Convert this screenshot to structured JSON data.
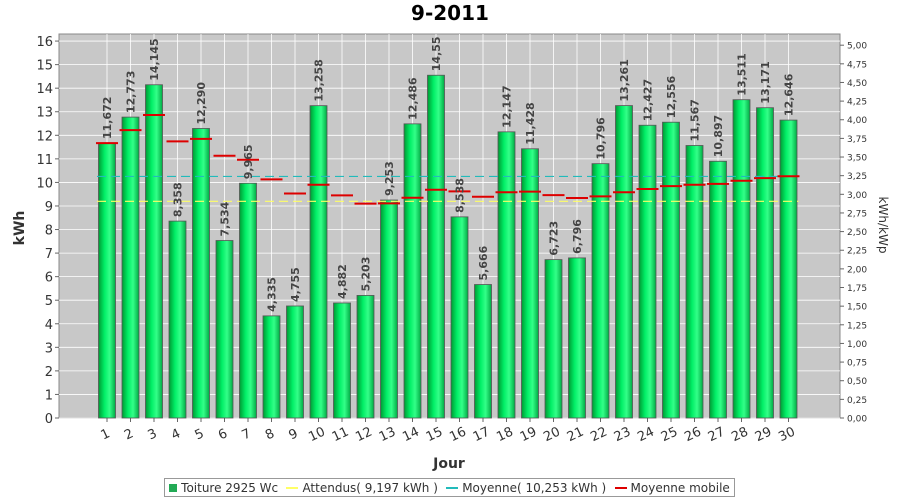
{
  "chart_data": {
    "type": "bar",
    "title": "9-2011",
    "xlabel": "Jour",
    "ylabel": "kWh",
    "ylabel_right": "kWh/kWp",
    "ylim": [
      0,
      16.3
    ],
    "ylim_right": [
      0,
      5.15
    ],
    "yticks_left": [
      "0",
      "1",
      "2",
      "3",
      "4",
      "5",
      "6",
      "7",
      "8",
      "9",
      "10",
      "11",
      "12",
      "13",
      "14",
      "15",
      "16"
    ],
    "yticks_right": [
      "0,00",
      "0,25",
      "0,50",
      "0,75",
      "1,00",
      "1,25",
      "1,50",
      "1,75",
      "2,00",
      "2,25",
      "2,50",
      "2,75",
      "3,00",
      "3,25",
      "3,50",
      "3,75",
      "4,00",
      "4,25",
      "4,50",
      "4,75",
      "5,00"
    ],
    "categories": [
      "1",
      "2",
      "3",
      "4",
      "5",
      "6",
      "7",
      "8",
      "9",
      "10",
      "11",
      "12",
      "13",
      "14",
      "15",
      "16",
      "17",
      "18",
      "19",
      "20",
      "21",
      "22",
      "23",
      "24",
      "25",
      "26",
      "27",
      "28",
      "29",
      "30"
    ],
    "series": [
      {
        "name": "Toiture 2925 Wc",
        "values": [
          11.672,
          12.773,
          14.145,
          8.358,
          12.29,
          7.534,
          9.965,
          4.335,
          4.755,
          13.258,
          4.882,
          5.203,
          9.253,
          12.486,
          14.55,
          8.538,
          5.666,
          12.147,
          11.428,
          6.723,
          6.796,
          10.796,
          13.261,
          12.427,
          12.556,
          11.567,
          10.897,
          13.511,
          13.171,
          12.646
        ],
        "labels": [
          "11,672",
          "12,773",
          "14,145",
          "8,358",
          "12,290",
          "7,534",
          "9,965",
          "4,335",
          "4,755",
          "13,258",
          "4,882",
          "5,203",
          "9,253",
          "12,486",
          "14,55",
          "8,538",
          "5,666",
          "12,147",
          "11,428",
          "6,723",
          "6,796",
          "10,796",
          "13,261",
          "12,427",
          "12,556",
          "11,567",
          "10,897",
          "13,511",
          "13,171",
          "12,646"
        ],
        "color": "#00cc55"
      },
      {
        "name": "Moyenne mobile",
        "values": [
          11.67,
          12.22,
          12.86,
          11.74,
          11.85,
          11.13,
          10.96,
          10.13,
          9.53,
          9.9,
          9.45,
          9.1,
          9.11,
          9.35,
          9.69,
          9.62,
          9.39,
          9.58,
          9.61,
          9.46,
          9.34,
          9.41,
          9.58,
          9.72,
          9.84,
          9.9,
          9.94,
          10.07,
          10.18,
          10.26
        ],
        "color": "#dd0000"
      }
    ],
    "reference_lines": [
      {
        "name": "Attendus( 9,197 kWh )",
        "value": 9.197,
        "color": "#ffff66"
      },
      {
        "name": "Moyenne( 10,253 kWh )",
        "value": 10.253,
        "color": "#22bbbb"
      }
    ],
    "grid": true,
    "legend_position": "bottom"
  },
  "legend": {
    "items": [
      {
        "label": "Toiture 2925 Wc",
        "color": "#22aa55",
        "kind": "box"
      },
      {
        "label": "Attendus( 9,197 kWh )",
        "color": "#ffff66",
        "kind": "line"
      },
      {
        "label": "Moyenne( 10,253 kWh )",
        "color": "#22bbbb",
        "kind": "line"
      },
      {
        "label": "Moyenne mobile",
        "color": "#dd0000",
        "kind": "line"
      }
    ]
  }
}
